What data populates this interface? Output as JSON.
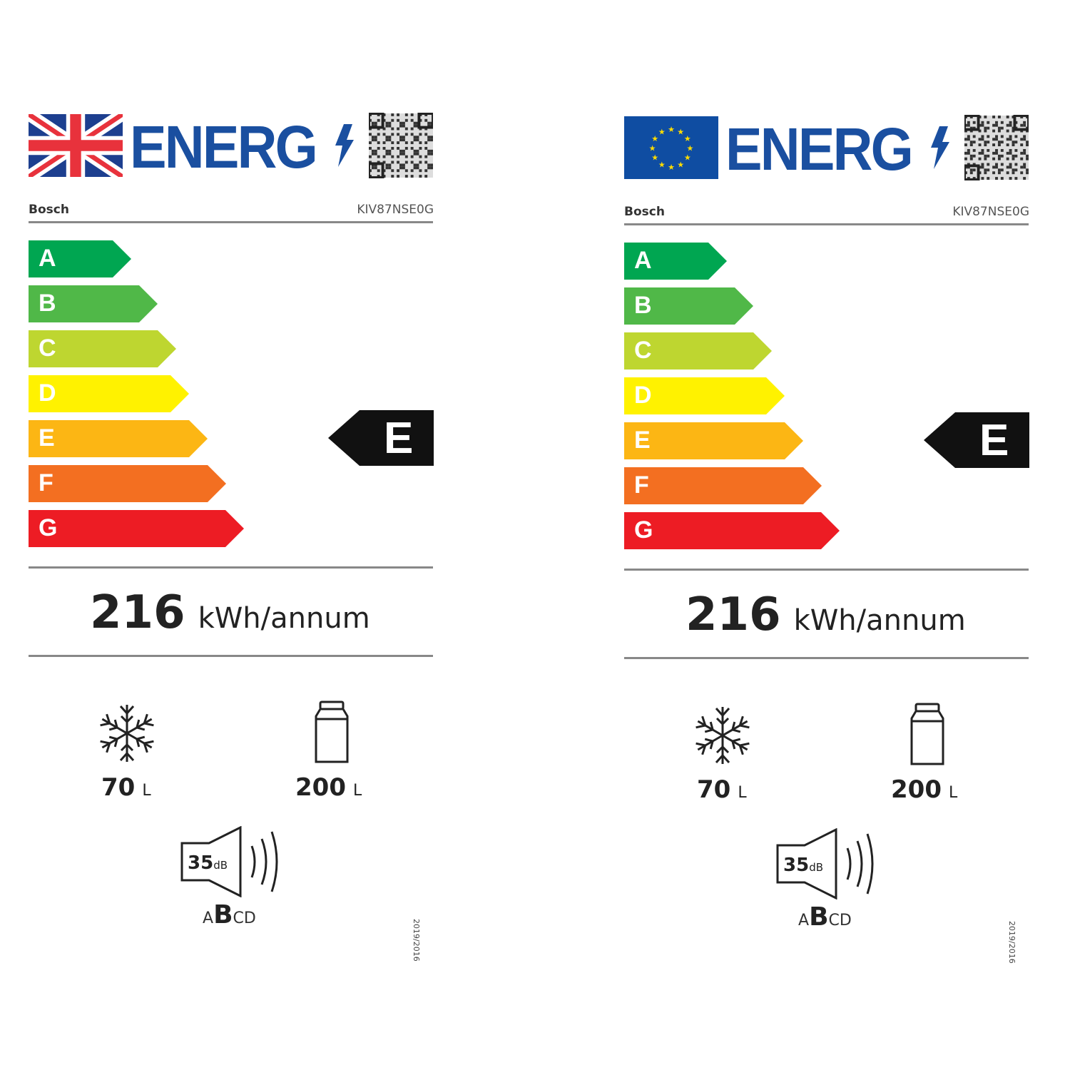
{
  "labels": [
    {
      "region": "UK",
      "flag_icon": "union-jack-flag-icon",
      "logo_text": "ENERG",
      "brand": "Bosch",
      "model": "KIV87NSE0G",
      "classes": [
        "A",
        "B",
        "C",
        "D",
        "E",
        "F",
        "G"
      ],
      "class_colors": [
        "#00a651",
        "#50b848",
        "#bed630",
        "#fff200",
        "#fcb614",
        "#f36f21",
        "#ed1c24"
      ],
      "rating": "E",
      "energy_value": "216",
      "energy_unit": "kWh/annum",
      "freezer_volume": "70",
      "freezer_unit": "L",
      "fridge_volume": "200",
      "fridge_unit": "L",
      "noise_value": "35",
      "noise_unit": "dB",
      "noise_classes": [
        "A",
        "B",
        "C",
        "D"
      ],
      "noise_class": "B",
      "regulation": "2019/2016"
    },
    {
      "region": "EU",
      "flag_icon": "eu-flag-icon",
      "logo_text": "ENERG",
      "brand": "Bosch",
      "model": "KIV87NSE0G",
      "classes": [
        "A",
        "B",
        "C",
        "D",
        "E",
        "F",
        "G"
      ],
      "class_colors": [
        "#00a651",
        "#50b848",
        "#bed630",
        "#fff200",
        "#fcb614",
        "#f36f21",
        "#ed1c24"
      ],
      "rating": "E",
      "energy_value": "216",
      "energy_unit": "kWh/annum",
      "freezer_volume": "70",
      "freezer_unit": "L",
      "fridge_volume": "200",
      "fridge_unit": "L",
      "noise_value": "35",
      "noise_unit": "dB",
      "noise_classes": [
        "A",
        "B",
        "C",
        "D"
      ],
      "noise_class": "B",
      "regulation": "2019/2016"
    }
  ],
  "colors": {
    "logo_blue": "#1a4fa0",
    "rating_arrow": "#111111"
  }
}
